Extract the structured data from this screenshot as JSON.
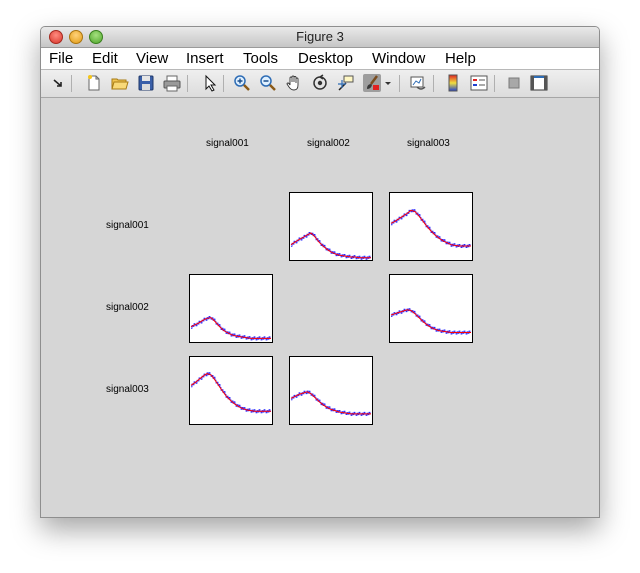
{
  "window": {
    "title": "Figure 3"
  },
  "menu": [
    "File",
    "Edit",
    "View",
    "Insert",
    "Tools",
    "Desktop",
    "Window",
    "Help"
  ],
  "toolbar": {
    "icons": [
      "dock-arrow-icon",
      "new-figure-icon",
      "open-file-icon",
      "save-icon",
      "print-icon",
      "select-arrow-icon",
      "zoom-in-icon",
      "zoom-out-icon",
      "pan-hand-icon",
      "rotate-3d-icon",
      "data-cursor-icon",
      "brush-icon",
      "brush-dropdown-icon",
      "link-plot-icon",
      "colorbar-icon",
      "legend-icon",
      "hide-plot-tools-icon",
      "show-plot-tools-icon"
    ]
  },
  "colors": {
    "series_a": "#1f1fff",
    "series_b": "#ff0000",
    "figure_bg": "#d6d6d6"
  },
  "matrix": {
    "column_labels": [
      "signal001",
      "signal002",
      "signal003"
    ],
    "row_labels": [
      "signal001",
      "signal002",
      "signal003"
    ]
  },
  "chart_data": {
    "type": "line",
    "layout": "scatter-matrix",
    "rows": 3,
    "cols": 3,
    "diagonal_empty": true,
    "series": [
      {
        "color": "#1f1fff",
        "style": "stairs"
      },
      {
        "color": "#ff0000",
        "style": "smooth"
      }
    ],
    "panels": [
      {
        "row": 1,
        "col": 2,
        "x": [
          0,
          1,
          2,
          3,
          4,
          5,
          6,
          7,
          8,
          9,
          10,
          11,
          12,
          13,
          14,
          15,
          16,
          17,
          18,
          19,
          20
        ],
        "y": [
          0.22,
          0.26,
          0.3,
          0.33,
          0.37,
          0.4,
          0.34,
          0.26,
          0.2,
          0.15,
          0.11,
          0.08,
          0.06,
          0.05,
          0.04,
          0.03,
          0.03,
          0.02,
          0.02,
          0.02,
          0.02
        ],
        "ylim": [
          0,
          1
        ]
      },
      {
        "row": 1,
        "col": 3,
        "x": [
          0,
          1,
          2,
          3,
          4,
          5,
          6,
          7,
          8,
          9,
          10,
          11,
          12,
          13,
          14,
          15,
          16,
          17,
          18,
          19,
          20
        ],
        "y": [
          0.55,
          0.58,
          0.62,
          0.66,
          0.7,
          0.75,
          0.73,
          0.66,
          0.58,
          0.5,
          0.43,
          0.37,
          0.32,
          0.28,
          0.25,
          0.22,
          0.21,
          0.2,
          0.2,
          0.2,
          0.2
        ],
        "ylim": [
          0,
          1
        ]
      },
      {
        "row": 2,
        "col": 1,
        "x": [
          0,
          1,
          2,
          3,
          4,
          5,
          6,
          7,
          8,
          9,
          10,
          11,
          12,
          13,
          14,
          15,
          16,
          17,
          18,
          19,
          20
        ],
        "y": [
          0.22,
          0.25,
          0.28,
          0.32,
          0.35,
          0.36,
          0.3,
          0.23,
          0.17,
          0.13,
          0.1,
          0.08,
          0.07,
          0.06,
          0.05,
          0.04,
          0.04,
          0.04,
          0.04,
          0.04,
          0.04
        ],
        "ylim": [
          0,
          1
        ]
      },
      {
        "row": 2,
        "col": 3,
        "x": [
          0,
          1,
          2,
          3,
          4,
          5,
          6,
          7,
          8,
          9,
          10,
          11,
          12,
          13,
          14,
          15,
          16,
          17,
          18,
          19,
          20
        ],
        "y": [
          0.4,
          0.42,
          0.44,
          0.46,
          0.48,
          0.47,
          0.42,
          0.36,
          0.3,
          0.25,
          0.21,
          0.18,
          0.16,
          0.15,
          0.14,
          0.13,
          0.13,
          0.13,
          0.13,
          0.13,
          0.13
        ],
        "ylim": [
          0,
          1
        ]
      },
      {
        "row": 3,
        "col": 1,
        "x": [
          0,
          1,
          2,
          3,
          4,
          5,
          6,
          7,
          8,
          9,
          10,
          11,
          12,
          13,
          14,
          15,
          16,
          17,
          18,
          19,
          20
        ],
        "y": [
          0.58,
          0.62,
          0.67,
          0.72,
          0.76,
          0.74,
          0.66,
          0.57,
          0.48,
          0.4,
          0.34,
          0.29,
          0.25,
          0.22,
          0.2,
          0.19,
          0.18,
          0.18,
          0.18,
          0.18,
          0.18
        ],
        "ylim": [
          0,
          1
        ]
      },
      {
        "row": 3,
        "col": 2,
        "x": [
          0,
          1,
          2,
          3,
          4,
          5,
          6,
          7,
          8,
          9,
          10,
          11,
          12,
          13,
          14,
          15,
          16,
          17,
          18,
          19,
          20
        ],
        "y": [
          0.38,
          0.41,
          0.44,
          0.46,
          0.48,
          0.45,
          0.39,
          0.33,
          0.28,
          0.24,
          0.21,
          0.19,
          0.17,
          0.16,
          0.15,
          0.14,
          0.14,
          0.14,
          0.14,
          0.14,
          0.14
        ],
        "ylim": [
          0,
          1
        ]
      }
    ]
  }
}
